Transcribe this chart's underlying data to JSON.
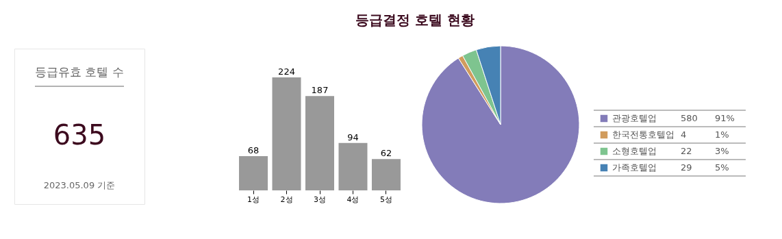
{
  "chart_data": [
    {
      "type": "other",
      "title": "등급유효 호텔 수",
      "values": [
        635
      ],
      "data_labels": true,
      "annotations": [
        "2023.05.09 기준"
      ]
    },
    {
      "type": "bar",
      "categories": [
        "1성",
        "2성",
        "3성",
        "4성",
        "5성"
      ],
      "values": [
        68,
        224,
        187,
        94,
        62
      ],
      "color": "#999999",
      "data_labels": true
    },
    {
      "type": "pie",
      "title": "등급결정 호텔 현황",
      "categories": [
        "관광호텔업",
        "한국전통호텔업",
        "소형호텔업",
        "가족호텔업"
      ],
      "values": [
        91,
        1,
        3,
        5
      ],
      "colors": [
        "#837cb9",
        "#d19c5d",
        "#7ec48f",
        "#4682b4"
      ],
      "value_labels": [
        "91%",
        "1%",
        "3%",
        "5%"
      ],
      "annotations": [
        "580",
        "4",
        "22",
        "29"
      ],
      "legend": "right"
    }
  ]
}
